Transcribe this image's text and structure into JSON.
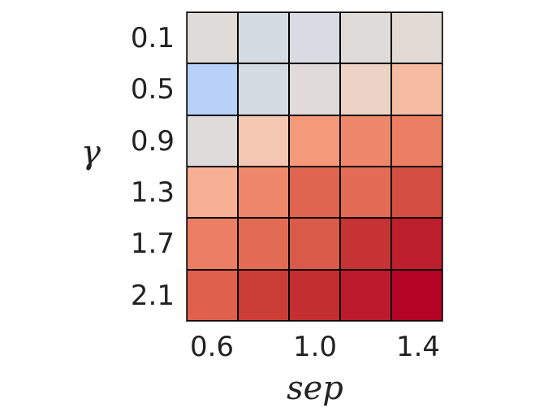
{
  "chart_data": {
    "type": "heatmap",
    "title": "",
    "xlabel": "sep",
    "ylabel": "γ",
    "x_tick_labels": [
      "0.6",
      "1.0",
      "1.4"
    ],
    "x_categories": [
      "0.6",
      "0.8",
      "1.0",
      "1.2",
      "1.4"
    ],
    "y_tick_labels": [
      "0.1",
      "0.5",
      "0.9",
      "1.3",
      "1.7",
      "2.1"
    ],
    "y_categories": [
      "0.1",
      "0.5",
      "0.9",
      "1.3",
      "1.7",
      "2.1"
    ],
    "colormap": "coolwarm",
    "grid": true,
    "colorbar": false,
    "values": [
      [
        0.5,
        0.47,
        0.48,
        0.51,
        0.52
      ],
      [
        0.35,
        0.47,
        0.5,
        0.57,
        0.65
      ],
      [
        0.5,
        0.6,
        0.74,
        0.78,
        0.8
      ],
      [
        0.68,
        0.78,
        0.86,
        0.84,
        0.9
      ],
      [
        0.8,
        0.84,
        0.88,
        0.94,
        0.97
      ],
      [
        0.85,
        0.92,
        0.95,
        0.98,
        1.0
      ]
    ],
    "cell_colors": [
      [
        "#dedbd9",
        "#d5dbe3",
        "#d8dce2",
        "#dfdbd9",
        "#e2dad5"
      ],
      [
        "#b9d0f9",
        "#d5dbe3",
        "#e0dbd9",
        "#edd3c5",
        "#f6bca2"
      ],
      [
        "#dedcdb",
        "#f3c7b1",
        "#f4997a",
        "#ef886b",
        "#ec7f63"
      ],
      [
        "#f7b093",
        "#ef886b",
        "#e0654f",
        "#e36c55",
        "#d44e41"
      ],
      [
        "#ec7f63",
        "#e36c55",
        "#da5a49",
        "#c53334",
        "#bd1f2d"
      ],
      [
        "#de604d",
        "#cb3e38",
        "#c32e31",
        "#bb1b2c",
        "#b40426"
      ]
    ]
  }
}
